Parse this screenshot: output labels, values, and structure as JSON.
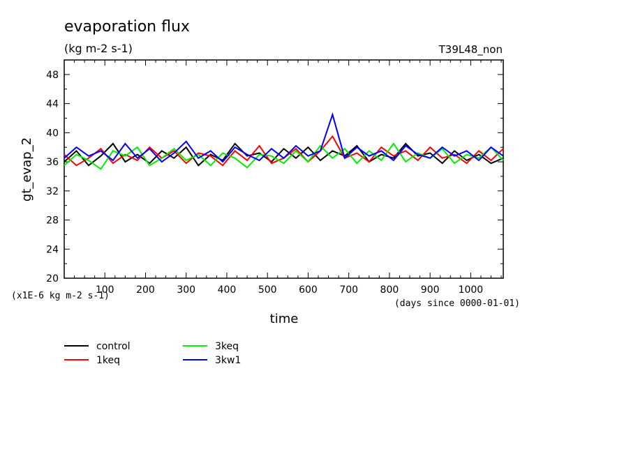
{
  "chart_data": {
    "type": "line",
    "title": "evaporation flux",
    "units": "(kg m-2 s-1)",
    "run_label": "T39L48_non",
    "ylabel": "gt_evap_2",
    "xlabel": "time",
    "y_multiplier_note": "(x1E-6 kg m-2 s-1)",
    "x_unit_note": "(days since 0000-01-01)",
    "xlim": [
      0,
      1080
    ],
    "ylim": [
      20,
      50
    ],
    "x_ticks": [
      100,
      200,
      300,
      400,
      500,
      600,
      700,
      800,
      900,
      1000
    ],
    "y_ticks": [
      20,
      24,
      28,
      32,
      36,
      40,
      44,
      48
    ],
    "grid": false,
    "legend_placement": "below",
    "series": [
      {
        "name": "control",
        "color": "#000000",
        "x": [
          0,
          30,
          60,
          90,
          120,
          150,
          180,
          210,
          240,
          270,
          300,
          330,
          360,
          390,
          420,
          450,
          480,
          510,
          540,
          570,
          600,
          630,
          660,
          690,
          720,
          750,
          780,
          810,
          840,
          870,
          900,
          930,
          960,
          990,
          1020,
          1050,
          1080
        ],
        "y": [
          36.0,
          37.5,
          35.5,
          36.8,
          38.5,
          36.0,
          37.0,
          35.8,
          37.5,
          36.5,
          38.0,
          35.5,
          37.0,
          36.2,
          38.5,
          36.8,
          37.2,
          36.0,
          37.8,
          36.5,
          38.0,
          36.2,
          37.5,
          36.8,
          38.2,
          36.0,
          37.0,
          36.5,
          38.5,
          36.8,
          37.2,
          35.8,
          37.5,
          36.2,
          37.0,
          35.8,
          36.5
        ]
      },
      {
        "name": "1keq",
        "color": "#ff0000",
        "x": [
          0,
          30,
          60,
          90,
          120,
          150,
          180,
          210,
          240,
          270,
          300,
          330,
          360,
          390,
          420,
          450,
          480,
          510,
          540,
          570,
          600,
          630,
          660,
          690,
          720,
          750,
          780,
          810,
          840,
          870,
          900,
          930,
          960,
          990,
          1020,
          1050,
          1080
        ],
        "y": [
          37.0,
          35.5,
          36.5,
          37.8,
          35.8,
          37.0,
          36.2,
          38.0,
          36.5,
          37.5,
          35.8,
          37.2,
          36.8,
          35.5,
          37.5,
          36.2,
          38.2,
          35.8,
          36.5,
          37.8,
          36.0,
          37.5,
          39.5,
          36.5,
          37.2,
          36.0,
          38.0,
          36.8,
          37.5,
          36.2,
          38.0,
          36.5,
          37.0,
          35.8,
          37.5,
          36.2,
          37.8
        ]
      },
      {
        "name": "3keq",
        "color": "#00ee00",
        "x": [
          0,
          30,
          60,
          90,
          120,
          150,
          180,
          210,
          240,
          270,
          300,
          330,
          360,
          390,
          420,
          450,
          480,
          510,
          540,
          570,
          600,
          630,
          660,
          690,
          720,
          750,
          780,
          810,
          840,
          870,
          900,
          930,
          960,
          990,
          1020,
          1050,
          1080
        ],
        "y": [
          35.5,
          37.0,
          36.2,
          35.0,
          37.5,
          36.8,
          38.0,
          35.5,
          36.5,
          37.8,
          36.2,
          37.0,
          35.5,
          37.2,
          36.5,
          35.2,
          37.0,
          36.8,
          35.8,
          37.5,
          36.0,
          38.2,
          36.5,
          37.8,
          35.8,
          37.5,
          36.2,
          38.5,
          36.0,
          37.2,
          36.5,
          37.8,
          35.8,
          37.0,
          36.5,
          38.0,
          36.2
        ]
      },
      {
        "name": "3kw1",
        "color": "#0000ff",
        "x": [
          0,
          30,
          60,
          90,
          120,
          150,
          180,
          210,
          240,
          270,
          300,
          330,
          360,
          390,
          420,
          450,
          480,
          510,
          540,
          570,
          600,
          630,
          660,
          690,
          720,
          750,
          780,
          810,
          840,
          870,
          900,
          930,
          960,
          990,
          1020,
          1050,
          1080
        ],
        "y": [
          36.5,
          38.0,
          36.8,
          37.5,
          36.2,
          38.5,
          36.5,
          37.8,
          36.0,
          37.2,
          38.8,
          36.5,
          37.5,
          36.0,
          38.0,
          37.0,
          36.2,
          37.8,
          36.5,
          38.2,
          36.8,
          37.5,
          42.5,
          36.5,
          38.0,
          36.8,
          37.5,
          36.2,
          38.2,
          37.0,
          36.5,
          38.0,
          36.8,
          37.5,
          36.2,
          38.0,
          36.8
        ]
      }
    ]
  }
}
